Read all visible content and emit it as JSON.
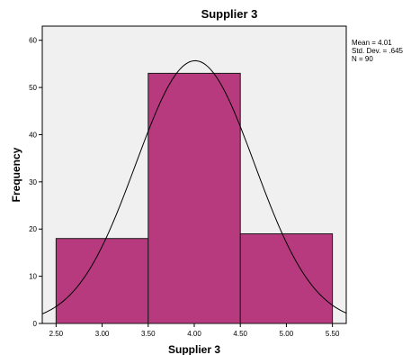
{
  "chart_data": {
    "type": "bar",
    "subtype": "histogram",
    "title": "Supplier 3",
    "xlabel": "Supplier 3",
    "ylabel": "Frequency",
    "xlim": [
      2.35,
      5.65
    ],
    "ylim": [
      0,
      63
    ],
    "x_ticks": [
      "2.50",
      "3.00",
      "3.50",
      "4.00",
      "4.50",
      "5.00",
      "5.50"
    ],
    "x_tick_values": [
      2.5,
      3.0,
      3.5,
      4.0,
      4.5,
      5.0,
      5.5
    ],
    "y_ticks": [
      "0",
      "10",
      "20",
      "30",
      "40",
      "50",
      "60"
    ],
    "y_tick_values": [
      0,
      10,
      20,
      30,
      40,
      50,
      60
    ],
    "bins": [
      {
        "from": 2.5,
        "to": 3.5,
        "value": 18
      },
      {
        "from": 3.5,
        "to": 4.5,
        "value": 53
      },
      {
        "from": 4.5,
        "to": 5.5,
        "value": 19
      }
    ],
    "normal_curve": {
      "mean": 4.01,
      "sd": 0.645,
      "n": 90,
      "bin_width": 1.0
    },
    "stats": [
      "Mean = 4.01",
      "Std. Dev. = .645",
      "N = 90"
    ],
    "grid": false,
    "colors": {
      "bar_fill": "#B83A7E",
      "bar_edge": "#1a1a1a",
      "plot_background": "#F0F0F0",
      "curve": "#000000"
    }
  }
}
